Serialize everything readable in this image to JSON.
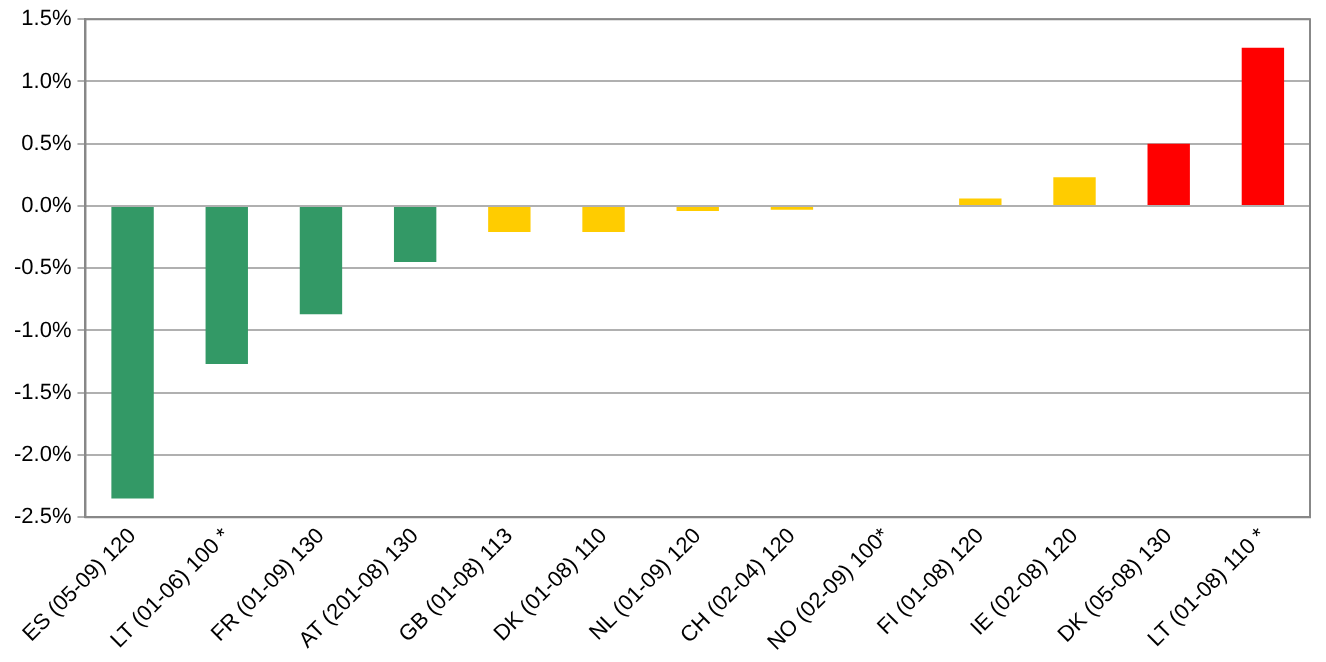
{
  "chart_data": {
    "type": "bar",
    "categories": [
      "ES (05-09) 120",
      "LT (01-06) 100 *",
      "FR (01-09) 130",
      "AT (201-08) 130",
      "GB (01-08) 113",
      "DK (01-08) 110",
      "NL (01-09) 120",
      "CH (02-04) 120",
      "NO (02-09) 100*",
      "FI (01-08) 120",
      "IE (02-08) 120",
      "DK (05-08) 130",
      "LT (01-08) 110 *"
    ],
    "values": [
      -2.35,
      -1.27,
      -0.87,
      -0.45,
      -0.21,
      -0.21,
      -0.04,
      -0.03,
      0,
      0.06,
      0.23,
      0.5,
      1.27
    ],
    "colors": [
      "#339966",
      "#339966",
      "#339966",
      "#339966",
      "#ffcc00",
      "#ffcc00",
      "#ffcc00",
      "#ffcc00",
      "#ffcc00",
      "#ffcc00",
      "#ffcc00",
      "#ff0000",
      "#ff0000"
    ],
    "ylim": [
      -2.5,
      1.5
    ],
    "yticks": [
      {
        "value": -2.5,
        "label": "-2.5%"
      },
      {
        "value": -2,
        "label": "-2.0%"
      },
      {
        "value": -1.5,
        "label": "-1.5%"
      },
      {
        "value": -1,
        "label": "-1.0%"
      },
      {
        "value": -0.5,
        "label": "-0.5%"
      },
      {
        "value": 0,
        "label": "0.0%"
      },
      {
        "value": 0.5,
        "label": "0.5%"
      },
      {
        "value": 1,
        "label": "1.0%"
      },
      {
        "value": 1.5,
        "label": "1.5%"
      }
    ],
    "grid": "y",
    "legend": false
  }
}
